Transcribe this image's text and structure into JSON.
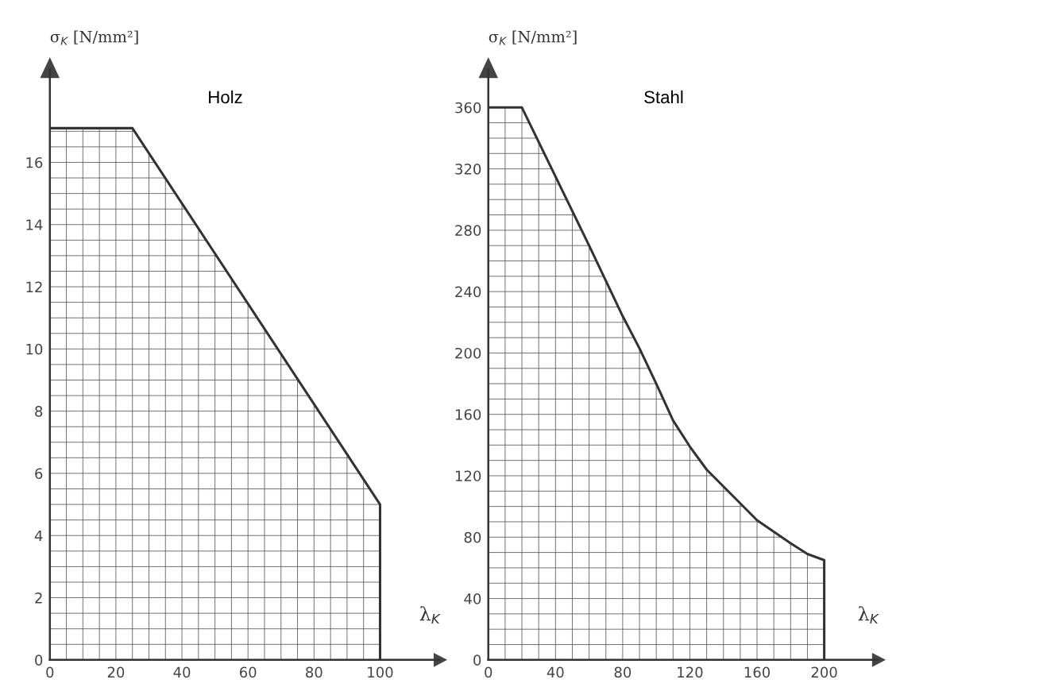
{
  "chart_data": [
    {
      "type": "area",
      "title": "Holz",
      "ylabel": "σ$_{K}$ [N/mm²]",
      "xlabel": "λ$_{K}$",
      "xlim": [
        0,
        118
      ],
      "ylim": [
        0,
        19
      ],
      "xticks": [
        0,
        20,
        40,
        60,
        80,
        100
      ],
      "yticks": [
        0,
        2,
        4,
        6,
        8,
        10,
        12,
        14,
        16
      ],
      "grid": true,
      "series": [
        {
          "color": "#333333",
          "x": [
            0,
            25,
            100,
            100
          ],
          "values": [
            17.1,
            17.1,
            5.0,
            0
          ]
        }
      ]
    },
    {
      "type": "area",
      "title": "Stahl",
      "ylabel": "σ$_{K}$ [N/mm²]",
      "xlabel": "λ$_{K}$",
      "xlim": [
        0,
        232
      ],
      "ylim": [
        0,
        385
      ],
      "xticks": [
        0,
        40,
        80,
        120,
        160,
        200
      ],
      "yticks": [
        0,
        40,
        80,
        120,
        160,
        200,
        240,
        280,
        320,
        360
      ],
      "grid": true,
      "series": [
        {
          "color": "#333333",
          "x": [
            0,
            20,
            60,
            80,
            90,
            100,
            110,
            120,
            130,
            140,
            160,
            180,
            190,
            200,
            200
          ],
          "values": [
            360,
            360,
            270,
            224,
            203,
            180,
            156,
            139,
            124,
            113,
            91,
            76,
            69,
            65,
            0
          ]
        }
      ]
    }
  ]
}
